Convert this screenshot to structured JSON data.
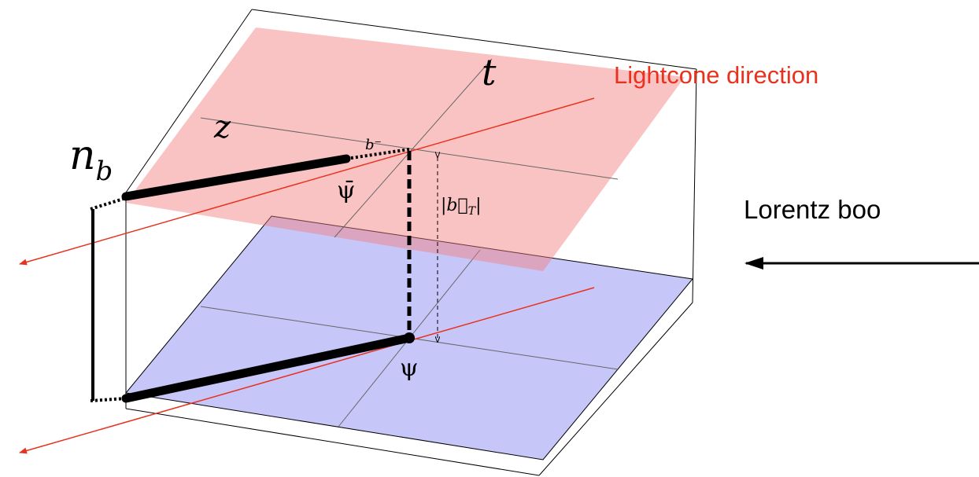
{
  "labels": {
    "t": "t",
    "z": "z",
    "lightcone": "Lightcone direction",
    "n_b": {
      "main": "n",
      "sub": "b"
    },
    "b_minus": "b⁻",
    "psibar": "ψ̄",
    "bT": {
      "open": "|",
      "vec": "b⃗",
      "sub": "T",
      "close": "|"
    },
    "psi": "ψ",
    "boost": "Lorentz boo"
  }
}
